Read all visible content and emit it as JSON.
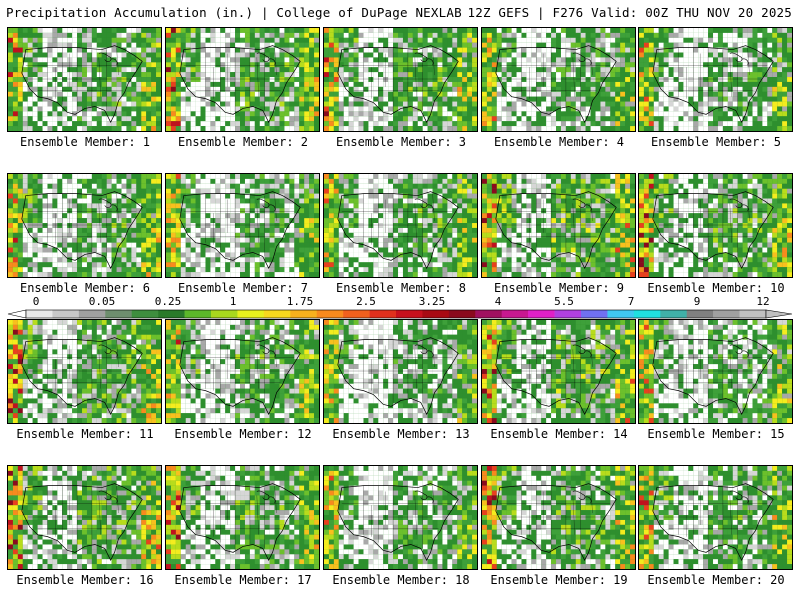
{
  "header": {
    "left": "Precipitation Accumulation (in.) | College of DuPage NEXLAB",
    "right": "12Z GEFS | F276 Valid: 00Z THU NOV 20 2025"
  },
  "members": [
    {
      "label": "Ensemble Member: 1",
      "wetness": 0.55
    },
    {
      "label": "Ensemble Member: 2",
      "wetness": 0.6
    },
    {
      "label": "Ensemble Member: 3",
      "wetness": 0.58
    },
    {
      "label": "Ensemble Member: 4",
      "wetness": 0.5
    },
    {
      "label": "Ensemble Member: 5",
      "wetness": 0.45
    },
    {
      "label": "Ensemble Member: 6",
      "wetness": 0.55
    },
    {
      "label": "Ensemble Member: 7",
      "wetness": 0.48
    },
    {
      "label": "Ensemble Member: 8",
      "wetness": 0.52
    },
    {
      "label": "Ensemble Member: 9",
      "wetness": 0.7
    },
    {
      "label": "Ensemble Member: 10",
      "wetness": 0.62
    },
    {
      "label": "Ensemble Member: 11",
      "wetness": 0.65
    },
    {
      "label": "Ensemble Member: 12",
      "wetness": 0.55
    },
    {
      "label": "Ensemble Member: 13",
      "wetness": 0.42
    },
    {
      "label": "Ensemble Member: 14",
      "wetness": 0.68
    },
    {
      "label": "Ensemble Member: 15",
      "wetness": 0.5
    },
    {
      "label": "Ensemble Member: 16",
      "wetness": 0.66
    },
    {
      "label": "Ensemble Member: 17",
      "wetness": 0.6
    },
    {
      "label": "Ensemble Member: 18",
      "wetness": 0.45
    },
    {
      "label": "Ensemble Member: 19",
      "wetness": 0.64
    },
    {
      "label": "Ensemble Member: 20",
      "wetness": 0.55
    }
  ],
  "colorbar": {
    "labels": [
      "0",
      "0.05",
      "0.25",
      "1",
      "1.75",
      "2.5",
      "3.25",
      "4",
      "5.5",
      "7",
      "9",
      "12"
    ],
    "colors": [
      "#e8e8e8",
      "#c8c8c8",
      "#a0a0a0",
      "#6e8e6e",
      "#3e8e3e",
      "#2a7a2a",
      "#5cb82a",
      "#a8d81e",
      "#e8f01e",
      "#f8d81e",
      "#f8b01e",
      "#f88a1e",
      "#f0601e",
      "#e0301e",
      "#c8101e",
      "#a80a14",
      "#8a0a1e",
      "#a01060",
      "#c81890",
      "#e020c8",
      "#b040e0",
      "#7070f0",
      "#40c8f0",
      "#20e0e0",
      "#40b0a8",
      "#808080",
      "#a0a0a0",
      "#c0c0c0"
    ],
    "levels": [
      {
        "color": "#ffffff",
        "weight": 0
      },
      {
        "color": "#b8b8b8",
        "weight": 2
      },
      {
        "color": "#3e8e3e",
        "weight": 5
      },
      {
        "color": "#5cb82a",
        "weight": 2.4
      },
      {
        "color": "#a8d81e",
        "weight": 1.2
      },
      {
        "color": "#f8e81e",
        "weight": 1.0
      },
      {
        "color": "#f8a81e",
        "weight": 0.6
      },
      {
        "color": "#f0601e",
        "weight": 0.35
      },
      {
        "color": "#d02020",
        "weight": 0.25
      },
      {
        "color": "#8a0a1e",
        "weight": 0.12
      },
      {
        "color": "#c81890",
        "weight": 0.08
      },
      {
        "color": "#7070f0",
        "weight": 0.05
      }
    ]
  }
}
